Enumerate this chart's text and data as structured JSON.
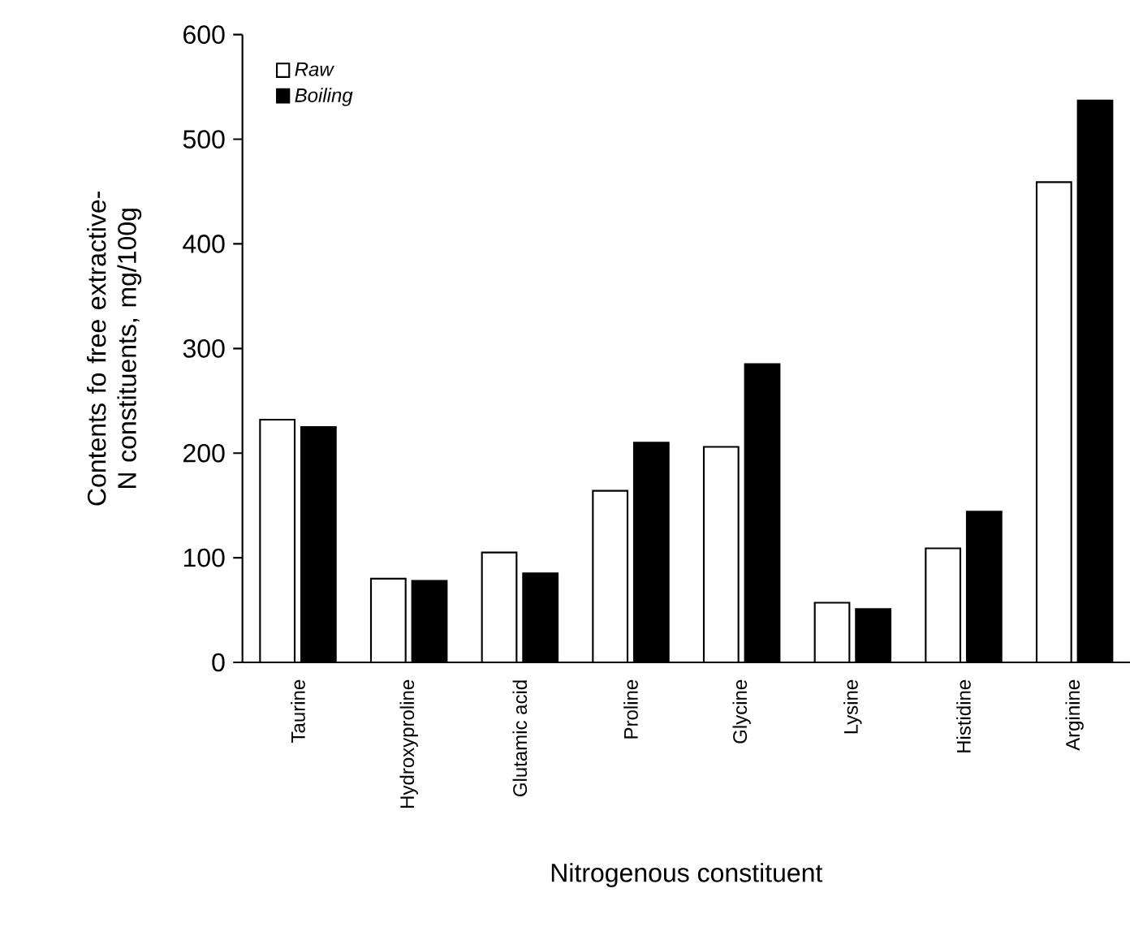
{
  "chart_data": {
    "type": "bar",
    "xlabel": "Nitrogenous constituent",
    "ylabel": "Contents fo free extractive-N constituents, mg/100g",
    "categories": [
      "Taurine",
      "Hydroxyproline",
      "Glutamic acid",
      "Proline",
      "Glycine",
      "Lysine",
      "Histidine",
      "Arginine"
    ],
    "series": [
      {
        "name": "Raw",
        "color": "#ffffff",
        "values": [
          232,
          80,
          105,
          164,
          206,
          57,
          109,
          459
        ]
      },
      {
        "name": "Boiling",
        "color": "#000000",
        "values": [
          225,
          78,
          85,
          210,
          285,
          51,
          144,
          537
        ]
      }
    ],
    "ylim": [
      0,
      600
    ],
    "yticks": [
      0,
      100,
      200,
      300,
      400,
      500,
      600
    ],
    "legend": "top left",
    "grid": false
  }
}
